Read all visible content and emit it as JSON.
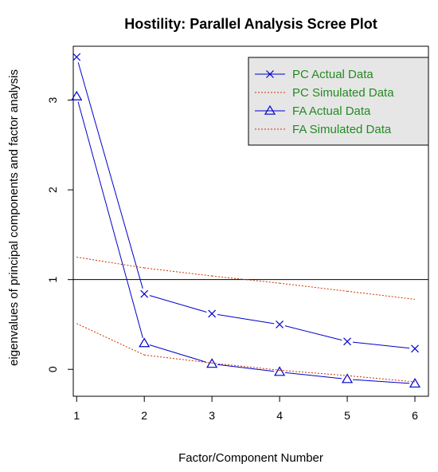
{
  "chart_data": {
    "type": "line",
    "title": "Hostility: Parallel Analysis Scree Plot",
    "xlabel": "Factor/Component Number",
    "ylabel": "eigenvalues of principal components and factor analysis",
    "x": [
      1,
      2,
      3,
      4,
      5,
      6
    ],
    "xlim": [
      0.95,
      6.2
    ],
    "ylim": [
      -0.3,
      3.6
    ],
    "xticks": [
      1,
      2,
      3,
      4,
      5,
      6
    ],
    "yticks": [
      0,
      1,
      2,
      3
    ],
    "reference_line": 1,
    "grid": false,
    "legend_position": "top-right",
    "series": [
      {
        "name": "PC Actual Data",
        "values": [
          3.48,
          0.84,
          0.62,
          0.5,
          0.31,
          0.23
        ],
        "color": "#0000cc",
        "style": "solid",
        "marker": "x"
      },
      {
        "name": "PC Simulated Data",
        "values": [
          1.25,
          1.13,
          1.04,
          0.96,
          0.87,
          0.78
        ],
        "color": "#cc3300",
        "style": "dotted",
        "marker": "none"
      },
      {
        "name": "FA Actual Data",
        "values": [
          3.04,
          0.29,
          0.06,
          -0.03,
          -0.11,
          -0.16
        ],
        "color": "#0000cc",
        "style": "solid",
        "marker": "triangle"
      },
      {
        "name": "FA Simulated Data",
        "values": [
          0.51,
          0.16,
          0.07,
          -0.01,
          -0.07,
          -0.14
        ],
        "color": "#cc3300",
        "style": "dotted",
        "marker": "none"
      }
    ],
    "legend": {
      "background": "#e6e6e6",
      "text_color": "#228b22",
      "entries": [
        {
          "label": "PC  Actual Data",
          "series": 0
        },
        {
          "label": "PC  Simulated Data",
          "series": 1
        },
        {
          "label": "FA  Actual Data",
          "series": 2
        },
        {
          "label": "FA  Simulated Data",
          "series": 3
        }
      ]
    }
  }
}
